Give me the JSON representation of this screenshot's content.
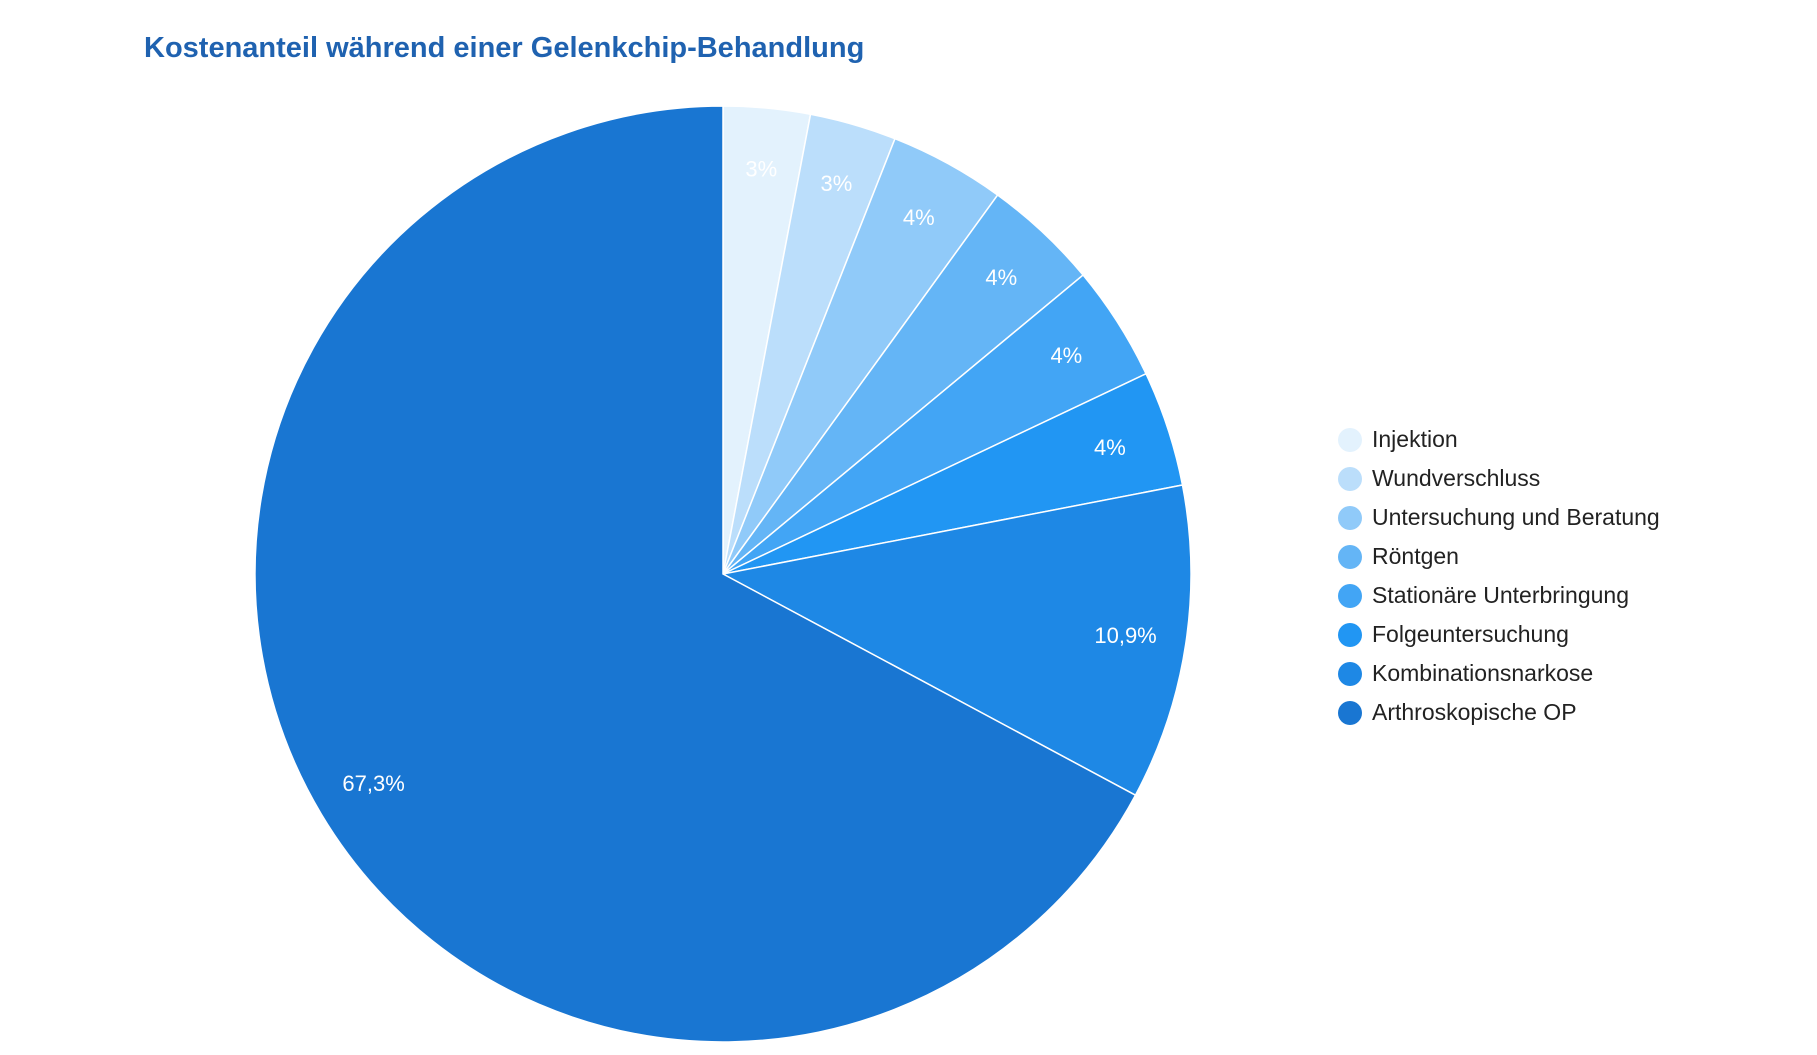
{
  "chart_data": {
    "type": "pie",
    "title": "Kostenanteil während einer Gelenkchip-Behandlung",
    "categories": [
      "Injektion",
      "Wundverschluss",
      "Untersuchung und Beratung",
      "Röntgen",
      "Stationäre Unterbringung",
      "Folgeuntersuchung",
      "Kombinationsnarkose",
      "Arthroskopische OP"
    ],
    "values": [
      3,
      3,
      4,
      4,
      4,
      4,
      10.9,
      67.3
    ],
    "data_labels": [
      "3%",
      "3%",
      "4%",
      "4%",
      "4%",
      "4%",
      "10,9%",
      "67,3%"
    ],
    "colors": [
      "#E3F2FD",
      "#BBDEFB",
      "#90CAF9",
      "#64B5F6",
      "#42A5F5",
      "#2196F3",
      "#1E88E5",
      "#1976D2"
    ],
    "legend_position": "right",
    "start_angle": "top, clockwise"
  }
}
